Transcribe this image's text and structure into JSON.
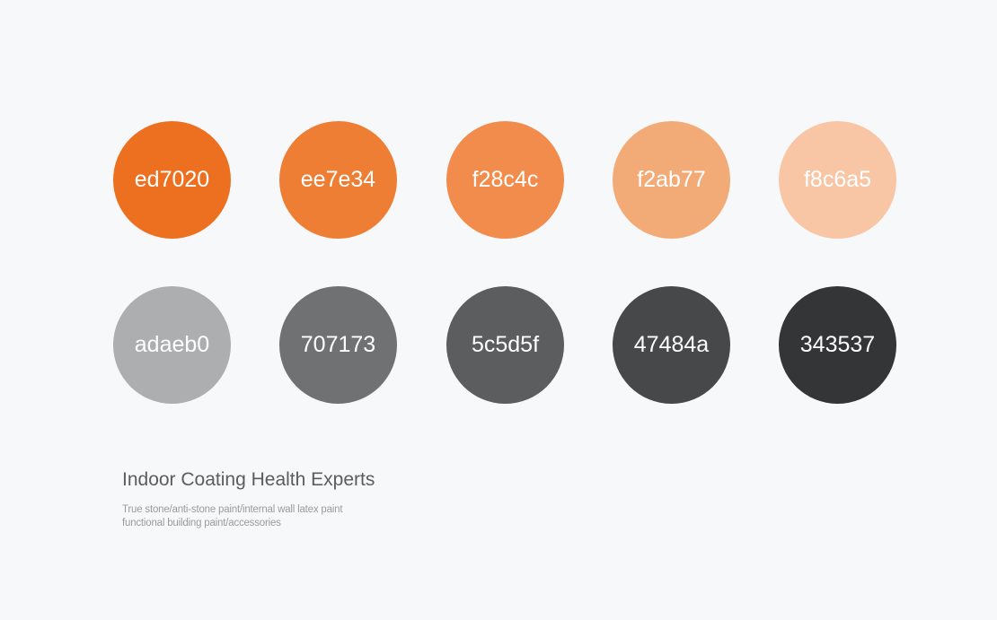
{
  "palette": {
    "orange": [
      {
        "label": "ed7020",
        "color": "#ed7020"
      },
      {
        "label": "ee7e34",
        "color": "#ee7e34"
      },
      {
        "label": "f28c4c",
        "color": "#f28c4c"
      },
      {
        "label": "f2ab77",
        "color": "#f2ab77"
      },
      {
        "label": "f8c6a5",
        "color": "#f8c6a5"
      }
    ],
    "gray": [
      {
        "label": "adaeb0",
        "color": "#adaeb0"
      },
      {
        "label": "707173",
        "color": "#707173"
      },
      {
        "label": "5c5d5f",
        "color": "#5c5d5f"
      },
      {
        "label": "47484a",
        "color": "#47484a"
      },
      {
        "label": "343537",
        "color": "#343537"
      }
    ]
  },
  "caption": {
    "title": "Indoor Coating Health Experts",
    "subtitle_line1": "True stone/anti-stone paint/internal wall latex paint",
    "subtitle_line2": "functional building paint/accessories"
  }
}
